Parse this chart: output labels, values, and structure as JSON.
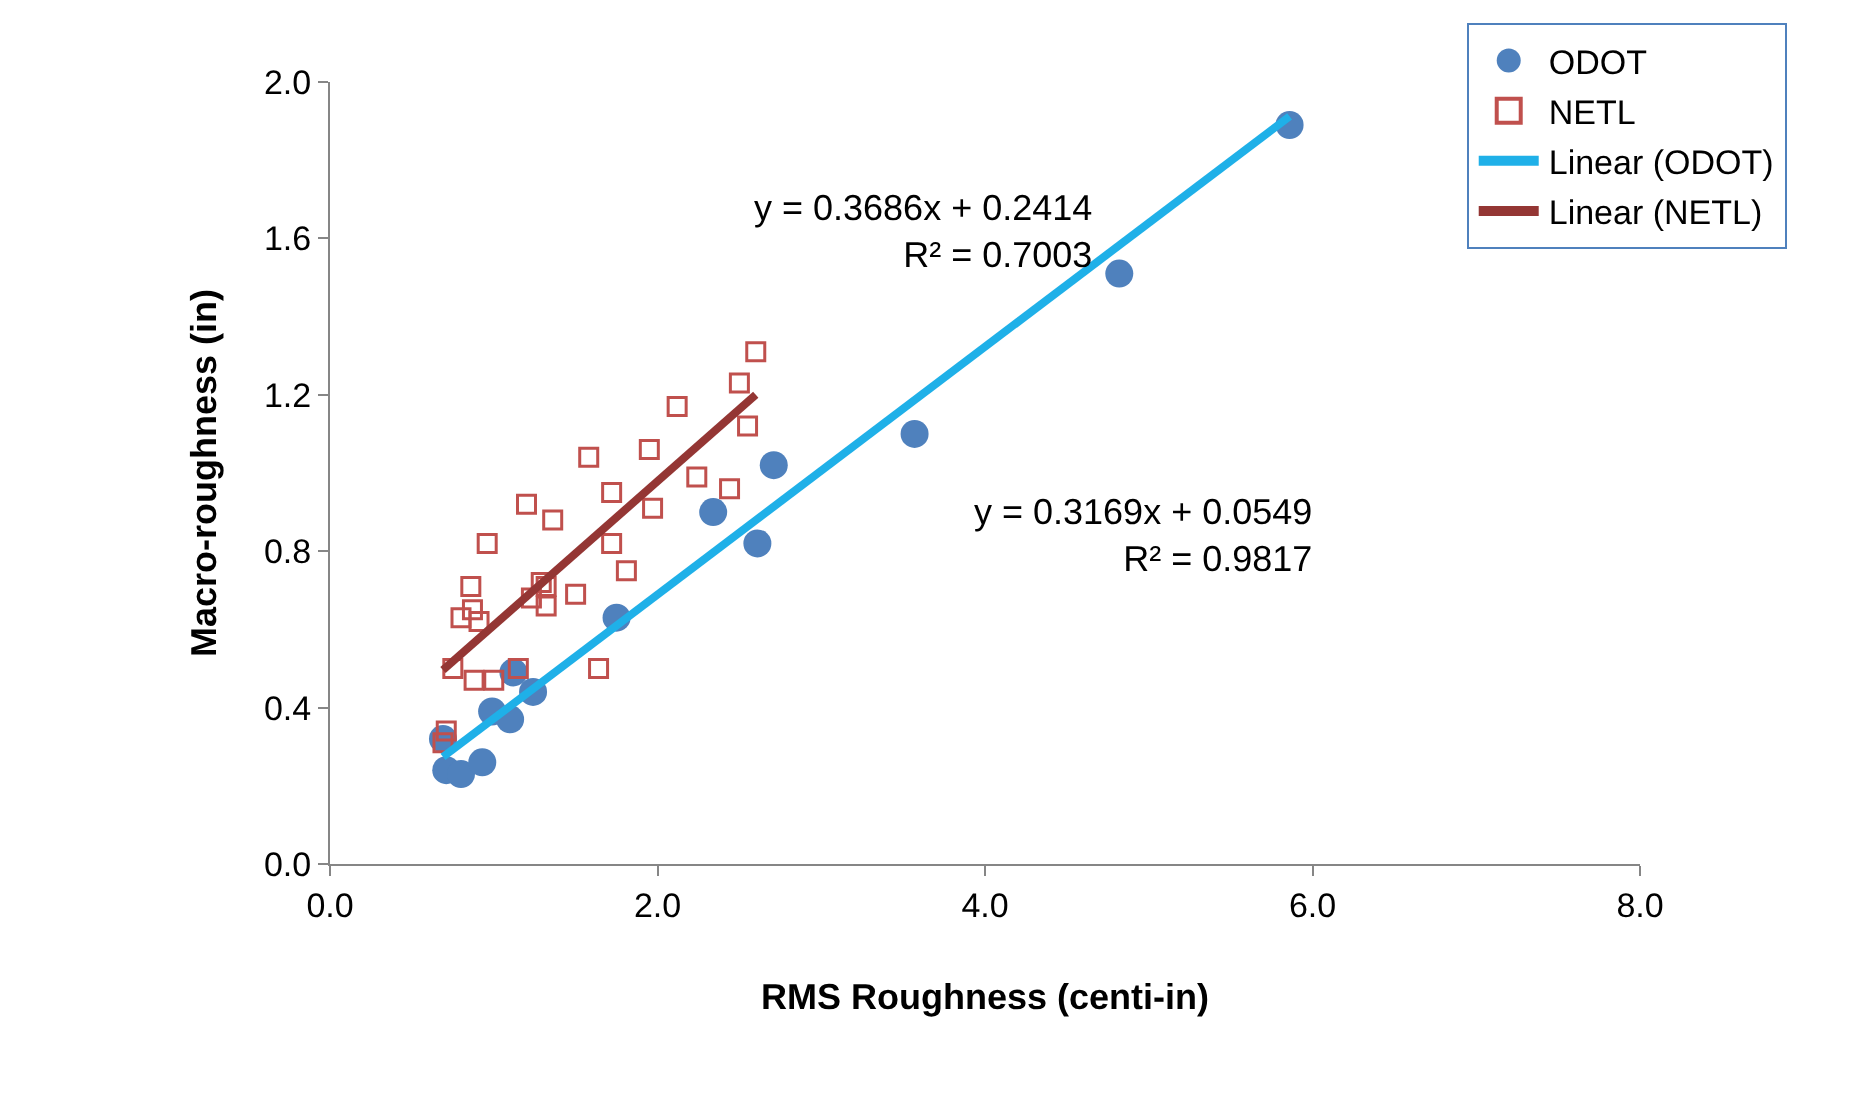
{
  "chart_data": {
    "type": "scatter",
    "xlabel": "RMS Roughness (centi-in)",
    "ylabel": "Macro-roughness (in)",
    "xlim": [
      0,
      8
    ],
    "xticks": [
      {
        "value": 0,
        "label": "0.0"
      },
      {
        "value": 2,
        "label": "2.0"
      },
      {
        "value": 4,
        "label": "4.0"
      },
      {
        "value": 6,
        "label": "6.0"
      },
      {
        "value": 8,
        "label": "8.0"
      }
    ],
    "ylim": [
      0,
      2
    ],
    "yticks": [
      {
        "value": 0,
        "label": "0.0"
      },
      {
        "value": 0.4,
        "label": "0.4"
      },
      {
        "value": 0.8,
        "label": "0.8"
      },
      {
        "value": 1.2,
        "label": "1.2"
      },
      {
        "value": 1.6,
        "label": "1.6"
      },
      {
        "value": 2,
        "label": "2.0"
      }
    ],
    "legend": "top right",
    "series": [
      {
        "name": "ODOT",
        "marker": "circle",
        "color": "#4f81bd",
        "x": [
          0.69,
          0.71,
          0.8,
          0.93,
          0.99,
          1.1,
          1.12,
          1.24,
          1.75,
          2.34,
          2.61,
          2.71,
          3.57,
          4.82,
          5.86
        ],
        "values": [
          0.32,
          0.24,
          0.23,
          0.26,
          0.39,
          0.37,
          0.49,
          0.44,
          0.63,
          0.9,
          0.82,
          1.02,
          1.1,
          1.51,
          1.89
        ]
      },
      {
        "name": "NETL",
        "marker": "square",
        "color": "#c0504d",
        "x": [
          2.6,
          2.5,
          2.55,
          2.12,
          1.95,
          1.58,
          2.24,
          2.44,
          1.72,
          1.97,
          1.2,
          1.36,
          0.96,
          1.72,
          1.81,
          0.86,
          1.29,
          1.32,
          1.23,
          1.5,
          0.87,
          0.8,
          0.91,
          1.32,
          0.75,
          0.88,
          1.0,
          1.15,
          1.64,
          0.71,
          0.69
        ],
        "values": [
          1.31,
          1.23,
          1.12,
          1.17,
          1.06,
          1.04,
          0.99,
          0.96,
          0.95,
          0.91,
          0.92,
          0.88,
          0.82,
          0.82,
          0.75,
          0.71,
          0.72,
          0.71,
          0.68,
          0.69,
          0.65,
          0.63,
          0.62,
          0.66,
          0.5,
          0.47,
          0.47,
          0.5,
          0.5,
          0.34,
          0.31
        ]
      },
      {
        "name": "Linear (ODOT)",
        "type": "line",
        "marker": "none",
        "line_style": "solid",
        "color": "#1fb0e8",
        "x": [
          0.69,
          5.86
        ],
        "values": [
          0.274,
          1.912
        ]
      },
      {
        "name": "Linear (NETL)",
        "type": "line",
        "marker": "none",
        "line_style": "solid",
        "color": "#943634",
        "x": [
          0.69,
          2.6
        ],
        "values": [
          0.496,
          1.2
        ]
      }
    ],
    "annotations": [
      "y = 0.3686x + 0.2414\nR² = 0.7003",
      "y = 0.3169x + 0.0549\nR² = 0.9817"
    ]
  }
}
